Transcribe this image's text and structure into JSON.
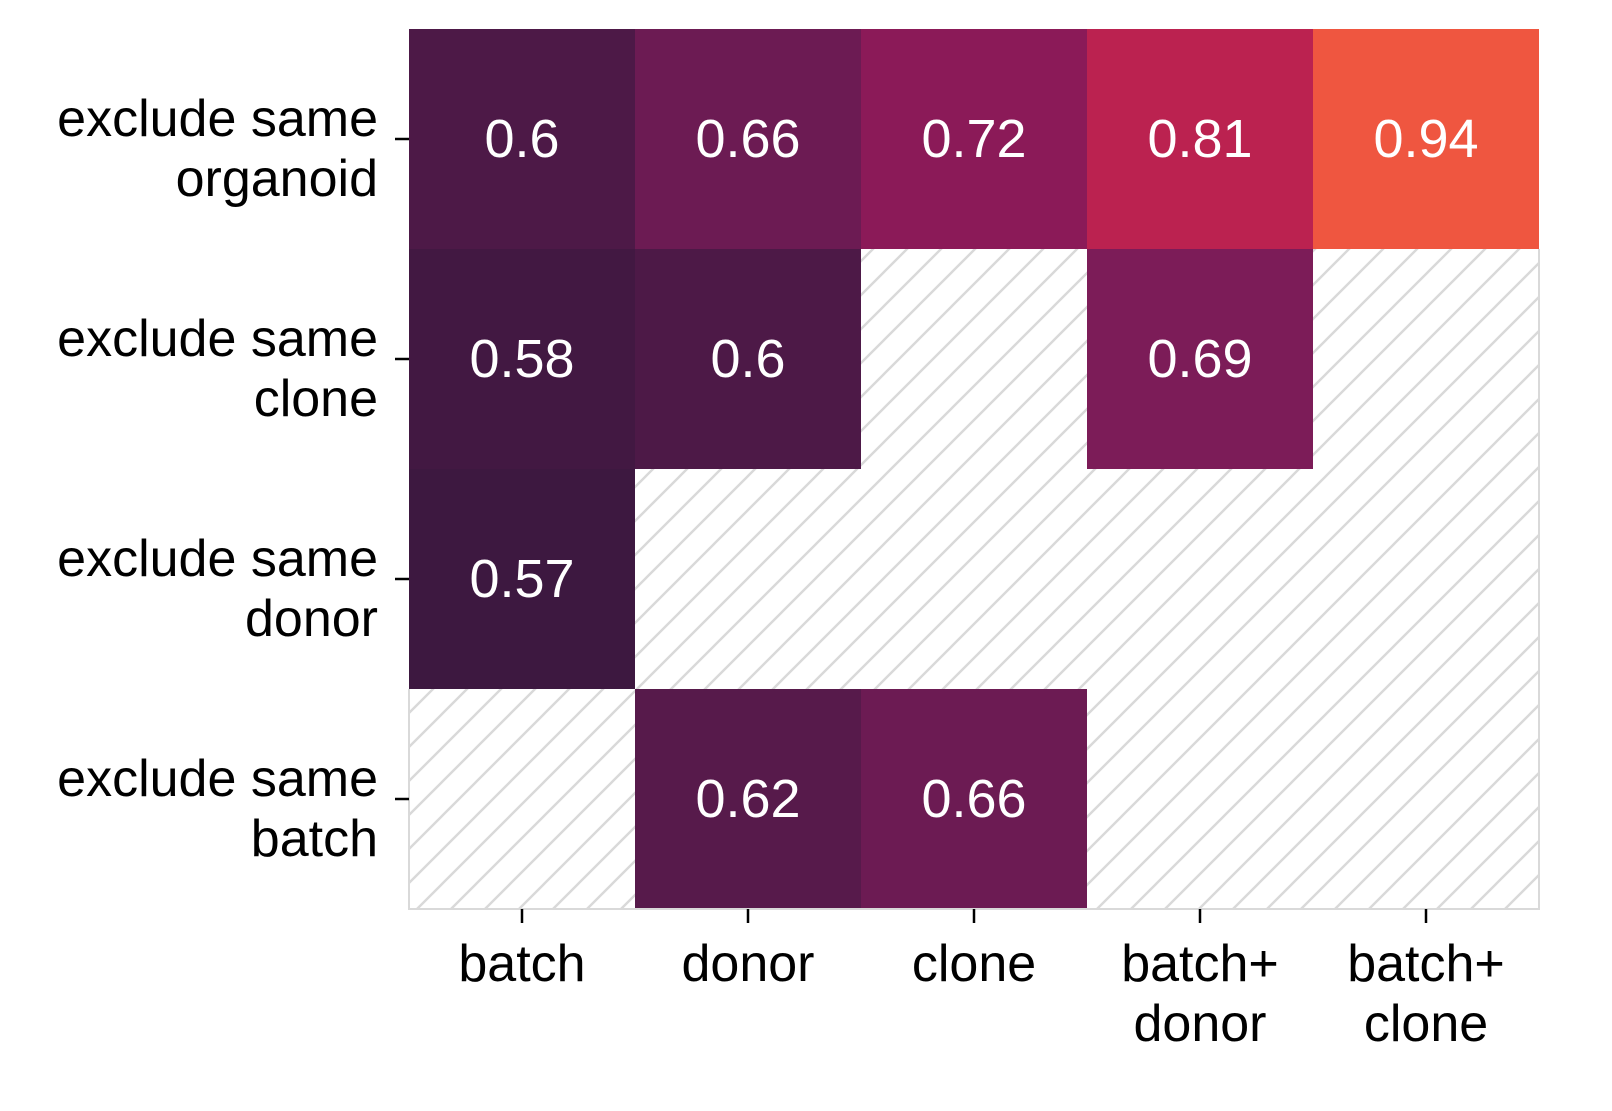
{
  "chart_data": {
    "type": "heatmap",
    "title": "",
    "xlabel": "",
    "ylabel": "",
    "x_categories": [
      [
        "batch"
      ],
      [
        "donor"
      ],
      [
        "clone"
      ],
      [
        "batch+",
        "donor"
      ],
      [
        "batch+",
        "clone"
      ]
    ],
    "y_categories": [
      [
        "exclude same",
        "organoid"
      ],
      [
        "exclude same",
        "clone"
      ],
      [
        "exclude same",
        "donor"
      ],
      [
        "exclude same",
        "batch"
      ]
    ],
    "values": [
      [
        0.6,
        0.66,
        0.72,
        0.81,
        0.94
      ],
      [
        0.58,
        0.6,
        null,
        0.69,
        null
      ],
      [
        0.57,
        null,
        null,
        null,
        null
      ],
      [
        null,
        0.62,
        0.66,
        null,
        null
      ]
    ],
    "value_labels": [
      [
        "0.6",
        "0.66",
        "0.72",
        "0.81",
        "0.94"
      ],
      [
        "0.58",
        "0.6",
        "",
        "0.69",
        ""
      ],
      [
        "0.57",
        "",
        "",
        "",
        ""
      ],
      [
        "",
        "0.62",
        "0.66",
        "",
        ""
      ]
    ],
    "colormap": "rocket",
    "missing_style": "diagonal-hatch",
    "colorbar": false,
    "grid": false,
    "legend": "none"
  }
}
